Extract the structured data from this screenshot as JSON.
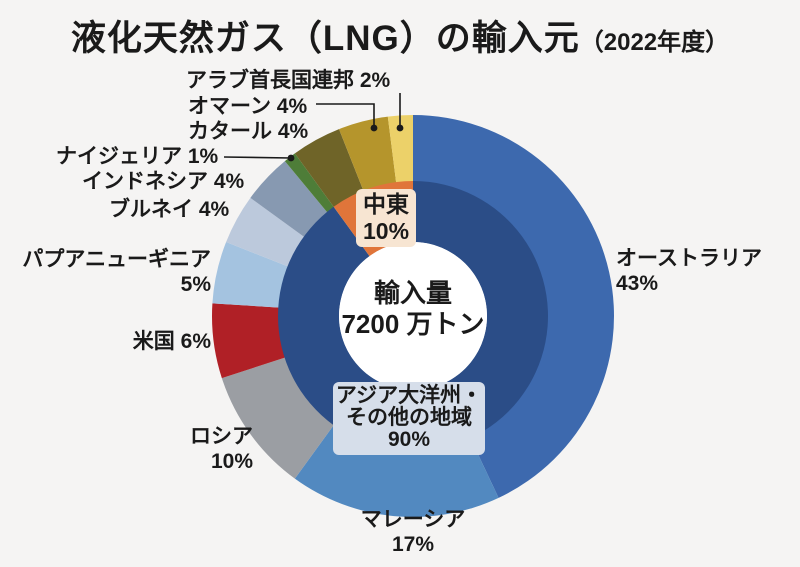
{
  "title": {
    "main": "液化天然ガス（LNG）の輸入元",
    "suffix": "（2022年度）"
  },
  "chart_data": {
    "type": "pie",
    "subtype": "double-ring-donut",
    "title": "液化天然ガス（LNG）の輸入元（2022年度）",
    "unit": "%",
    "direction": "clockwise",
    "start_angle_deg": 0,
    "center_label": {
      "line1": "輸入量",
      "line2": "7200 万トン"
    },
    "outer_ring": {
      "description": "country share of LNG imports",
      "segments": [
        {
          "key": "australia",
          "name": "オーストラリア",
          "value": 43,
          "pct_label": "43%",
          "color": "#3d69ae"
        },
        {
          "key": "malaysia",
          "name": "マレーシア",
          "value": 17,
          "pct_label": "17%",
          "color": "#5289c0"
        },
        {
          "key": "russia",
          "name": "ロシア",
          "value": 10,
          "pct_label": "10%",
          "color": "#9b9ea3"
        },
        {
          "key": "usa",
          "name": "米国",
          "value": 6,
          "pct_label": "6%",
          "color": "#b02026"
        },
        {
          "key": "papua-new-guinea",
          "name": "パプアニューギニア",
          "value": 5,
          "pct_label": "5%",
          "color": "#a4c3e0"
        },
        {
          "key": "brunei",
          "name": "ブルネイ",
          "value": 4,
          "pct_label": "4%",
          "color": "#bcc9dc"
        },
        {
          "key": "indonesia",
          "name": "インドネシア",
          "value": 4,
          "pct_label": "4%",
          "color": "#8799b1"
        },
        {
          "key": "nigeria",
          "name": "ナイジェリア",
          "value": 1,
          "pct_label": "1%",
          "color": "#4e7d38"
        },
        {
          "key": "qatar",
          "name": "カタール",
          "value": 4,
          "pct_label": "4%",
          "color": "#6f6428"
        },
        {
          "key": "oman",
          "name": "オマーン",
          "value": 4,
          "pct_label": "4%",
          "color": "#b5952c"
        },
        {
          "key": "uae",
          "name": "アラブ首長国連邦",
          "value": 2,
          "pct_label": "2%",
          "color": "#ecd169"
        }
      ]
    },
    "inner_ring": {
      "description": "region share of LNG imports",
      "segments": [
        {
          "key": "asia-oceania-others",
          "name": "アジア大洋州・その他の地域",
          "line1": "アジア大洋州・",
          "line2": "その他の地域",
          "value": 90,
          "pct_label": "90%",
          "color": "#2b4d87",
          "label_bg": "#d6deea"
        },
        {
          "key": "middle-east",
          "name": "中東",
          "value": 10,
          "pct_label": "10%",
          "color": "#e0753a",
          "label_bg": "#f7e5d2"
        }
      ]
    }
  },
  "colors": {
    "background": "#f5f4f3",
    "text": "#1a1a1a",
    "center_circle": "#ffffff",
    "leader_line": "#1a1a1a"
  }
}
